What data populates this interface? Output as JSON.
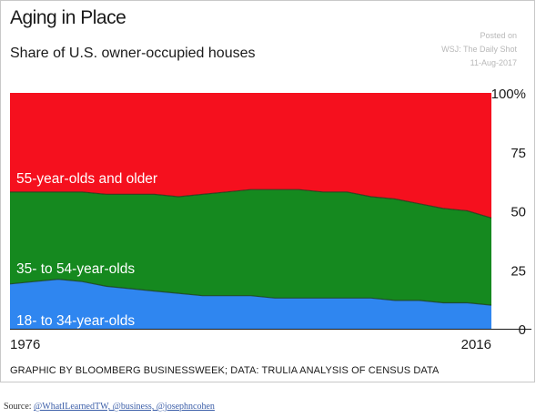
{
  "header": {
    "title": "Aging in Place",
    "subtitle": "Share of U.S. owner-occupied houses"
  },
  "watermark": {
    "line1": "Posted on",
    "line2": "WSJ: The Daily Shot",
    "line3": "11-Aug-2017"
  },
  "footer": {
    "credit": "GRAPHIC BY BLOOMBERG BUSINESSWEEK; DATA: TRULIA ANALYSIS OF CENSUS DATA"
  },
  "source": {
    "prefix": "Source: ",
    "links": "@WhatILearnedTW, @business, @josephncohen"
  },
  "chart_data": {
    "type": "area",
    "stacked": true,
    "x": [
      1976,
      1978,
      1980,
      1982,
      1984,
      1986,
      1988,
      1990,
      1992,
      1994,
      1996,
      1998,
      2000,
      2002,
      2004,
      2006,
      2008,
      2010,
      2012,
      2014,
      2016
    ],
    "series": [
      {
        "name": "18- to 34-year-olds",
        "color": "#2f86f0",
        "values": [
          19,
          20,
          21,
          20,
          18,
          17,
          16,
          15,
          14,
          14,
          14,
          13,
          13,
          13,
          13,
          13,
          12,
          12,
          11,
          11,
          10
        ]
      },
      {
        "name": "35- to 54-year-olds",
        "color": "#15891f",
        "values": [
          39,
          38,
          37,
          38,
          39,
          40,
          41,
          41,
          43,
          44,
          45,
          46,
          46,
          45,
          45,
          43,
          43,
          41,
          40,
          39,
          37
        ]
      },
      {
        "name": "55-year-olds and older",
        "color": "#f5101e",
        "values": [
          42,
          42,
          42,
          42,
          43,
          43,
          43,
          44,
          43,
          42,
          41,
          41,
          41,
          42,
          42,
          44,
          45,
          47,
          49,
          50,
          53
        ]
      }
    ],
    "x_tick_labels": [
      "1976",
      "2016"
    ],
    "y_ticks": [
      0,
      25,
      50,
      75,
      100
    ],
    "y_tick_labels": [
      "0",
      "25",
      "50",
      "75",
      "100%"
    ],
    "ylim": [
      0,
      100
    ],
    "xlim": [
      1976,
      2016
    ],
    "grid": false,
    "y_axis_side": "right",
    "legend": "labels inside areas",
    "label_color": "#ffffff",
    "text_color": "#1a1a1a"
  }
}
